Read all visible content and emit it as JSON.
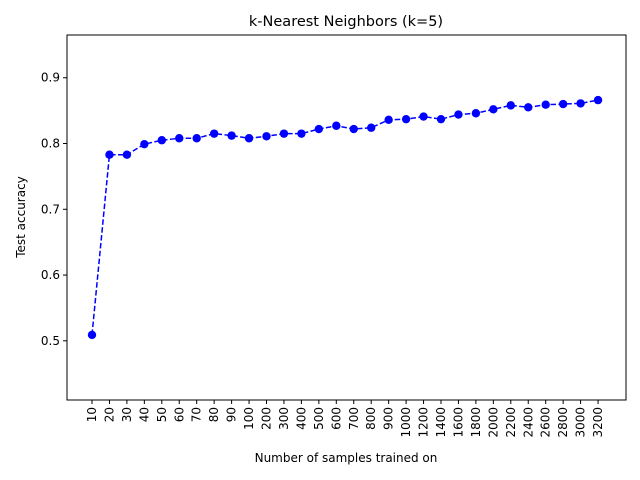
{
  "chart_data": {
    "type": "line",
    "title": "k-Nearest Neighbors (k=5)",
    "xlabel": "Number of samples trained on",
    "ylabel": "Test accuracy",
    "categories": [
      "10",
      "20",
      "30",
      "40",
      "50",
      "60",
      "70",
      "80",
      "90",
      "100",
      "200",
      "300",
      "400",
      "500",
      "600",
      "700",
      "800",
      "900",
      "1000",
      "1200",
      "1400",
      "1600",
      "1800",
      "2000",
      "2200",
      "2400",
      "2600",
      "2800",
      "3000",
      "3200"
    ],
    "series": [
      {
        "values": [
          0.509,
          0.783,
          0.783,
          0.799,
          0.805,
          0.808,
          0.808,
          0.815,
          0.812,
          0.808,
          0.811,
          0.815,
          0.815,
          0.822,
          0.827,
          0.822,
          0.824,
          0.836,
          0.837,
          0.841,
          0.837,
          0.844,
          0.846,
          0.852,
          0.858,
          0.855,
          0.859,
          0.86,
          0.861,
          0.866
        ],
        "color": "#0000ff",
        "line_style": "dashed",
        "marker": "circle"
      }
    ],
    "ylim": [
      0.41,
      0.965
    ],
    "yticks": [
      "0.5",
      "0.6",
      "0.7",
      "0.8",
      "0.9"
    ],
    "grid": false,
    "legend": "none"
  }
}
